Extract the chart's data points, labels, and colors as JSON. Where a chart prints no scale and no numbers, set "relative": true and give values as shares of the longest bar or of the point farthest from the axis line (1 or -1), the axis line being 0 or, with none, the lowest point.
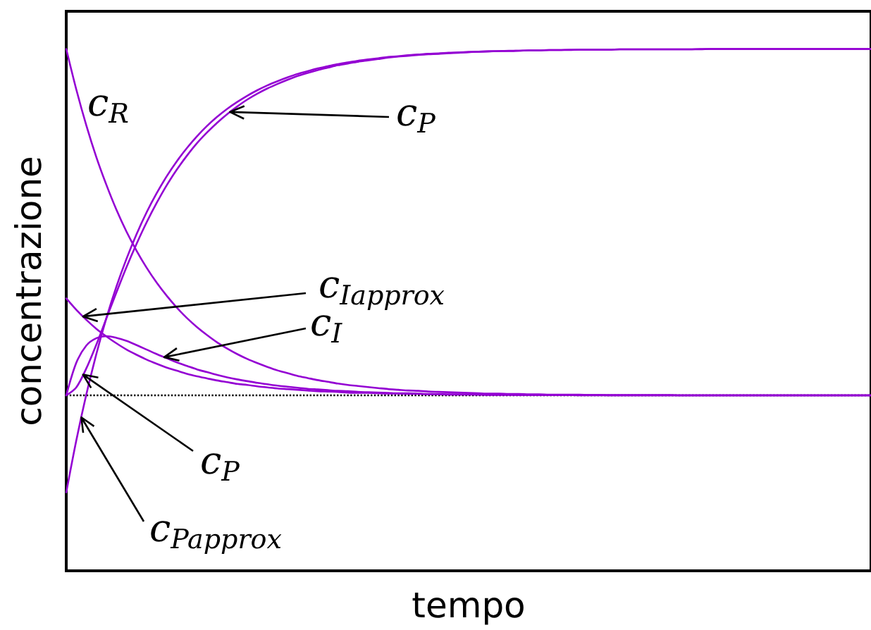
{
  "chart_data": {
    "type": "line",
    "relative": true,
    "xlabel": "tempo",
    "ylabel": "concentrazione",
    "tick_labels": false,
    "line_style": "solid",
    "categories": [
      null,
      null,
      null,
      null,
      null,
      null,
      null,
      null,
      null,
      null,
      null,
      null,
      null,
      null,
      null,
      null,
      null,
      null,
      null,
      null,
      null,
      null,
      null,
      null,
      null,
      null,
      null,
      null,
      null,
      null,
      null,
      null,
      null,
      null,
      null,
      null,
      null,
      null,
      null,
      null,
      null,
      null,
      null,
      null,
      null,
      null,
      null,
      null,
      null,
      null,
      null,
      null,
      null,
      null,
      null,
      null,
      null,
      null,
      null,
      null,
      null,
      null,
      null,
      null,
      null,
      null,
      null,
      null,
      null,
      null,
      null,
      null,
      null,
      null,
      null,
      null,
      null,
      null,
      null,
      null,
      null
    ],
    "series": [
      {
        "name": "c$_{R}$",
        "color": "#9400d3",
        "values": [
          1,
          0.883,
          0.779,
          0.687,
          0.607,
          0.535,
          0.472,
          0.417,
          0.368,
          0.325,
          0.287,
          0.253,
          0.223,
          0.197,
          0.174,
          0.153,
          0.135,
          0.119,
          0.105,
          0.093,
          0.082,
          0.072,
          0.064,
          0.056,
          0.05,
          0.044,
          0.039,
          0.034,
          0.03,
          0.027,
          0.024,
          0.021,
          0.018,
          0.016,
          0.014,
          0.013,
          0.011,
          0.01,
          0.009,
          0.008,
          0.007,
          0.006,
          0.005,
          0.005,
          0.004,
          0.004,
          0.003,
          0.003,
          0.002,
          0.002,
          0.002,
          0.002,
          0.001,
          0.001,
          0.001,
          0.001,
          0.001,
          0.001,
          0.001,
          0.001,
          0.001,
          0,
          0,
          0,
          0,
          0,
          0,
          0,
          0,
          0,
          0,
          0,
          0,
          0,
          0,
          0,
          0,
          0,
          0,
          0,
          0
        ]
      },
      {
        "name": "c$_{P}$",
        "color": "#9400d3",
        "values": [
          0,
          0.023,
          0.078,
          0.147,
          0.223,
          0.298,
          0.371,
          0.438,
          0.5,
          0.556,
          0.607,
          0.652,
          0.692,
          0.728,
          0.759,
          0.787,
          0.812,
          0.834,
          0.854,
          0.871,
          0.886,
          0.899,
          0.911,
          0.922,
          0.931,
          0.939,
          0.946,
          0.953,
          0.958,
          0.963,
          0.967,
          0.971,
          0.975,
          0.978,
          0.98,
          0.983,
          0.985,
          0.986,
          0.988,
          0.989,
          0.991,
          0.992,
          0.993,
          0.994,
          0.994,
          0.995,
          0.996,
          0.996,
          0.997,
          0.997,
          0.997,
          0.998,
          0.998,
          0.998,
          0.998,
          0.999,
          0.999,
          0.999,
          0.999,
          0.999,
          0.999,
          0.999,
          0.999,
          0.999,
          1,
          1,
          1,
          1,
          1,
          1,
          1,
          1,
          1,
          1,
          1,
          1,
          1,
          1,
          1,
          1,
          1
        ]
      },
      {
        "name": "c$_{I}$",
        "color": "#9400d3",
        "values": [
          0,
          0.094,
          0.144,
          0.165,
          0.171,
          0.166,
          0.157,
          0.145,
          0.132,
          0.119,
          0.107,
          0.095,
          0.085,
          0.075,
          0.067,
          0.059,
          0.052,
          0.046,
          0.041,
          0.036,
          0.032,
          0.028,
          0.025,
          0.022,
          0.019,
          0.017,
          0.015,
          0.013,
          0.012,
          0.01,
          0.009,
          0.008,
          0.007,
          0.006,
          0.006,
          0.005,
          0.004,
          0.004,
          0.003,
          0.003,
          0.003,
          0.002,
          0.002,
          0.002,
          0.002,
          0.001,
          0.001,
          0.001,
          0.001,
          0.001,
          0.001,
          0.001,
          0.001,
          0.001,
          0,
          0,
          0,
          0,
          0,
          0,
          0,
          0,
          0,
          0,
          0,
          0,
          0,
          0,
          0,
          0,
          0,
          0,
          0,
          0,
          0,
          0,
          0,
          0,
          0,
          0,
          0
        ]
      },
      {
        "name": "c$_{Iapprox}$",
        "color": "#9400d3",
        "values": [
          0.28,
          0.247,
          0.218,
          0.192,
          0.17,
          0.15,
          0.132,
          0.117,
          0.103,
          0.091,
          0.08,
          0.071,
          0.062,
          0.055,
          0.049,
          0.043,
          0.038,
          0.033,
          0.03,
          0.026,
          0.023,
          0.02,
          0.018,
          0.016,
          0.014,
          0.012,
          0.011,
          0.01,
          0.008,
          0.007,
          0.007,
          0.006,
          0.005,
          0.005,
          0.004,
          0.004,
          0.003,
          0.003,
          0.002,
          0.002,
          0.002,
          0.002,
          0.001,
          0.001,
          0.001,
          0.001,
          0.001,
          0.001,
          0.001,
          0.001,
          0.001,
          0,
          0,
          0,
          0,
          0,
          0,
          0,
          0,
          0,
          0,
          0,
          0,
          0,
          0,
          0,
          0,
          0,
          0,
          0,
          0,
          0,
          0,
          0,
          0,
          0,
          0,
          0,
          0,
          0,
          0
        ]
      },
      {
        "name": "c$_{Papprox}$",
        "color": "#9400d3",
        "values": [
          -0.28,
          -0.13,
          0.003,
          0.12,
          0.224,
          0.315,
          0.395,
          0.466,
          0.529,
          0.584,
          0.633,
          0.676,
          0.714,
          0.748,
          0.778,
          0.804,
          0.827,
          0.847,
          0.865,
          0.881,
          0.895,
          0.907,
          0.918,
          0.928,
          0.936,
          0.944,
          0.95,
          0.956,
          0.961,
          0.966,
          0.97,
          0.973,
          0.977,
          0.979,
          0.982,
          0.984,
          0.986,
          0.987,
          0.989,
          0.99,
          0.991,
          0.992,
          0.993,
          0.994,
          0.995,
          0.995,
          0.996,
          0.996,
          0.997,
          0.997,
          0.998,
          0.998,
          0.998,
          0.998,
          0.998,
          0.999,
          0.999,
          0.999,
          0.999,
          0.999,
          0.999,
          0.999,
          0.999,
          1,
          1,
          1,
          1,
          1,
          1,
          1,
          1,
          1,
          1,
          1,
          1,
          1,
          1,
          1,
          1,
          1,
          1
        ]
      }
    ],
    "ref_lines": [
      {
        "axis": "y",
        "value": 0,
        "line_style": "dotted",
        "color": "#000000"
      }
    ]
  }
}
